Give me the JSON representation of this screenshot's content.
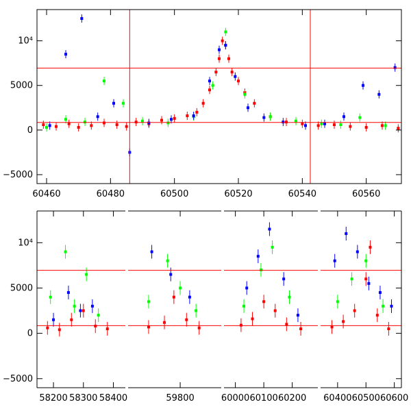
{
  "chart_data": [
    {
      "type": "scatter",
      "title": "",
      "xlabel": "",
      "ylabel": "",
      "xlim": [
        60457,
        60571
      ],
      "ylim": [
        -6000,
        13500
      ],
      "xticks": [
        60460,
        60480,
        60500,
        60520,
        60540,
        60560
      ],
      "xtick_labels": [
        "60460",
        "60480",
        "60500",
        "60520",
        "60540",
        "60560"
      ],
      "yticks": [
        -5000,
        0,
        5000,
        10000
      ],
      "ytick_labels": [
        "−5000",
        "0",
        "5000",
        "10⁴"
      ],
      "hlines": [
        6950,
        850
      ],
      "vlines": [
        60486,
        60542.5
      ],
      "grid": false,
      "legend": "none",
      "colors": {
        "red": "#ff0000",
        "green": "#00ff00",
        "blue": "#0000ff",
        "lines": "#ff0000"
      },
      "series": [
        {
          "color": "red",
          "x": [
            60459,
            60463,
            60467,
            60470,
            60474,
            60478,
            60482,
            60485,
            60488,
            60492,
            60496,
            60500,
            60504,
            60507,
            60509,
            60511,
            60513,
            60514,
            60515,
            60516,
            60517,
            60518,
            60520,
            60522,
            60525,
            60530,
            60535,
            60540,
            60545,
            60550,
            60555,
            60560,
            60565,
            60570
          ],
          "y": [
            600,
            400,
            700,
            300,
            500,
            800,
            600,
            400,
            900,
            700,
            1100,
            1300,
            1600,
            2000,
            3000,
            4500,
            6500,
            8000,
            10000,
            9500,
            8000,
            6500,
            5500,
            4200,
            3000,
            1500,
            900,
            700,
            500,
            600,
            400,
            300,
            500,
            200
          ]
        },
        {
          "color": "green",
          "x": [
            60460,
            60466,
            60472,
            60478,
            60484,
            60490,
            60498,
            60506,
            60512,
            60516,
            60522,
            60530,
            60538,
            60546,
            60552,
            60558,
            60566
          ],
          "y": [
            300,
            1200,
            900,
            5500,
            3000,
            1000,
            800,
            1500,
            5000,
            11000,
            4000,
            1500,
            1000,
            700,
            600,
            1400,
            500
          ]
        },
        {
          "color": "blue",
          "x": [
            60461,
            60466,
            60471,
            60476,
            60481,
            60486,
            60492,
            60499,
            60506,
            60511,
            60514,
            60516,
            60519,
            60523,
            60528,
            60534,
            60541,
            60547,
            60553,
            60559,
            60564,
            60569
          ],
          "y": [
            500,
            8500,
            12500,
            1500,
            3000,
            -2500,
            800,
            1200,
            1600,
            5500,
            9000,
            9500,
            6000,
            2500,
            1400,
            900,
            500,
            700,
            1500,
            5000,
            4000,
            7000
          ]
        }
      ]
    },
    {
      "type": "scatter",
      "title": "",
      "xlabel": "",
      "ylabel": "",
      "segments": [
        {
          "xlim": [
            58145,
            58440
          ],
          "xticks": [
            58200,
            58300,
            58400
          ],
          "xtick_labels": [
            "58200",
            "58300",
            "58400"
          ]
        },
        {
          "xlim": [
            59635,
            59930
          ],
          "xticks": [
            59800
          ],
          "xtick_labels": [
            "59800"
          ]
        },
        {
          "xlim": [
            59960,
            60290
          ],
          "xticks": [
            60000,
            60100,
            60200
          ],
          "xtick_labels": [
            "60000",
            "60100",
            "60200"
          ]
        },
        {
          "xlim": [
            60340,
            60625
          ],
          "xticks": [
            60400,
            60500,
            60600
          ],
          "xtick_labels": [
            "60400",
            "60500",
            "60600"
          ]
        }
      ],
      "ylim": [
        -6000,
        13500
      ],
      "yticks": [
        -5000,
        0,
        5000,
        10000
      ],
      "ytick_labels": [
        "−5000",
        "0",
        "5000",
        "10⁴"
      ],
      "hlines": [
        6950,
        850
      ],
      "grid": false,
      "legend": "none",
      "series": [
        {
          "color": "red",
          "x": [
            58180,
            58220,
            58260,
            58300,
            58340,
            58380,
            59700,
            59750,
            59780,
            59820,
            59860,
            60020,
            60060,
            60100,
            60140,
            60180,
            60230,
            60380,
            60420,
            60460,
            60500,
            60515,
            60540,
            60580
          ],
          "y": [
            600,
            400,
            1500,
            2500,
            800,
            500,
            700,
            1200,
            4000,
            1500,
            600,
            900,
            1600,
            3500,
            2500,
            1000,
            500,
            700,
            1300,
            2500,
            6000,
            9500,
            2000,
            500
          ]
        },
        {
          "color": "green",
          "x": [
            58190,
            58240,
            58270,
            58310,
            58350,
            59700,
            59760,
            59800,
            59850,
            60030,
            60090,
            60130,
            60190,
            60400,
            60450,
            60500,
            60560
          ],
          "y": [
            4000,
            9000,
            3000,
            6500,
            2000,
            3500,
            8000,
            5000,
            2500,
            3000,
            7000,
            9500,
            4000,
            3500,
            6000,
            8000,
            3000
          ]
        },
        {
          "color": "blue",
          "x": [
            58200,
            58250,
            58290,
            58330,
            59710,
            59770,
            59830,
            60040,
            60080,
            60120,
            60170,
            60220,
            60390,
            60430,
            60470,
            60510,
            60550,
            60590
          ],
          "y": [
            1500,
            4500,
            2500,
            3000,
            9000,
            6500,
            4000,
            5000,
            8500,
            11500,
            6000,
            2000,
            8000,
            11000,
            9000,
            5500,
            4500,
            3000
          ]
        }
      ]
    }
  ]
}
